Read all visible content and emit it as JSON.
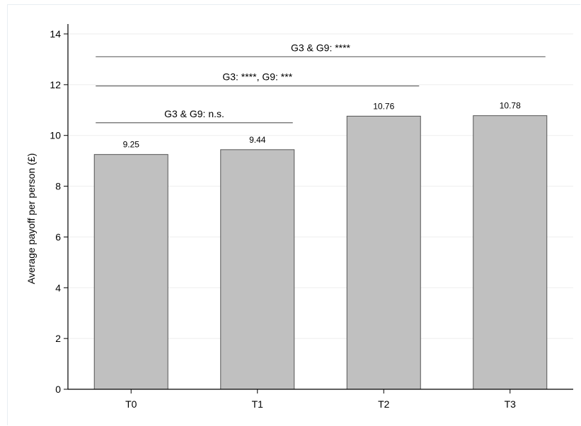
{
  "chart_data": {
    "type": "bar",
    "categories": [
      "T0",
      "T1",
      "T2",
      "T3"
    ],
    "values": [
      9.25,
      9.44,
      10.76,
      10.78
    ],
    "data_labels": [
      "9.25",
      "9.44",
      "10.76",
      "10.78"
    ],
    "ylabel": "Average payoff per person (£)",
    "xlabel": "",
    "ylim": [
      0,
      14
    ],
    "yticks": [
      0,
      2,
      4,
      6,
      8,
      10,
      12,
      14
    ],
    "grid": true,
    "bar_color": "#c0c0c0",
    "bar_edge_color": "#555555",
    "comparisons": [
      {
        "label": "G3 & G9: ****",
        "from": "T0",
        "to": "T3",
        "y": 13.1
      },
      {
        "label": "G3: ****, G9: ***",
        "from": "T0",
        "to": "T2",
        "y": 11.95
      },
      {
        "label": "G3 & G9: n.s.",
        "from": "T0",
        "to": "T1",
        "y": 10.5
      }
    ]
  }
}
